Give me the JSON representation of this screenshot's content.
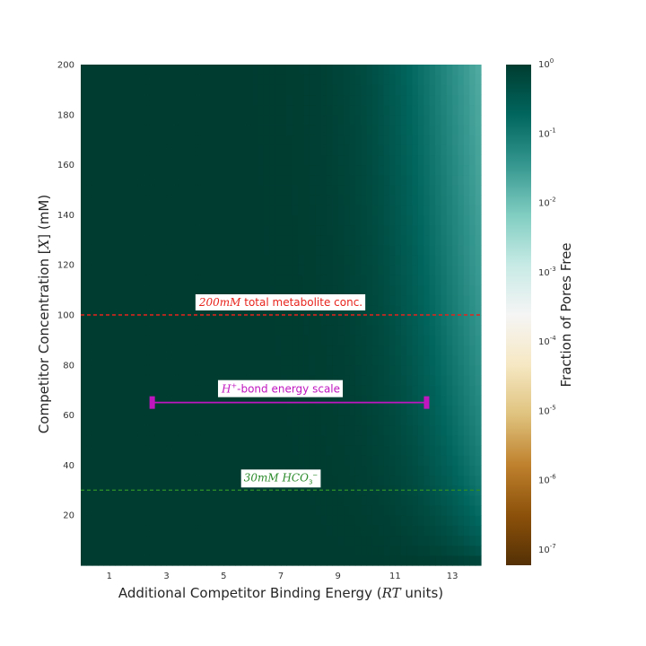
{
  "chart_data": {
    "type": "heatmap",
    "title": "",
    "xlabel": "Additional Competitor Binding Energy (RT units)",
    "ylabel": "Competitor Concentration [X] (mM)",
    "xlim": [
      0,
      14
    ],
    "ylim": [
      0,
      200
    ],
    "x_ticks": [
      "1",
      "3",
      "5",
      "7",
      "9",
      "11",
      "13"
    ],
    "y_ticks": [
      "20",
      "40",
      "60",
      "80",
      "100",
      "120",
      "140",
      "160",
      "180",
      "200"
    ],
    "grid": false,
    "colorbar": {
      "label": "Fraction of Pores Free",
      "scale": "log",
      "colormap": "BrBG",
      "range": [
        6e-08,
        1
      ],
      "ticks": [
        "10^0",
        "10^-1",
        "10^-2",
        "10^-3",
        "10^-4",
        "10^-5",
        "10^-6",
        "10^-7"
      ]
    },
    "annotations": [
      {
        "text": "200mM total metabolite conc.",
        "y": 100,
        "style": "dashed",
        "color": "#e8231c"
      },
      {
        "text": "H+-bond energy scale",
        "y": 65,
        "x_range": [
          2.5,
          12.1
        ],
        "style": "errorbar",
        "color": "#c016c0"
      },
      {
        "text": "30mM HCO3-",
        "y": 30,
        "style": "dashed",
        "color": "#2a8a2a"
      }
    ]
  }
}
